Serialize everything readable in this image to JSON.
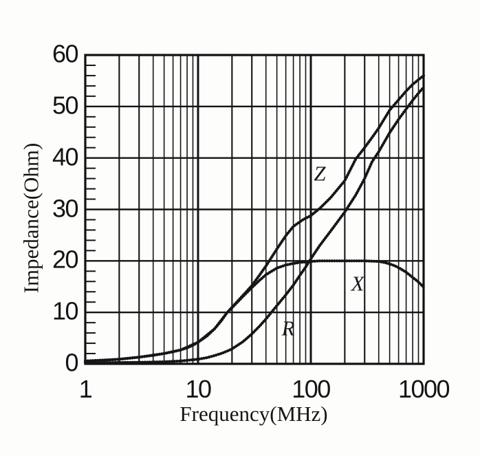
{
  "chart_data": {
    "type": "line",
    "title": "",
    "xlabel": "Frequency(MHz)",
    "ylabel": "Impedance(Ohm)",
    "x_scale": "log",
    "xlim": [
      1,
      1000
    ],
    "ylim": [
      0,
      60
    ],
    "x_tick_values": [
      1,
      10,
      100,
      1000
    ],
    "x_tick_labels": [
      "1",
      "10",
      "100",
      "1000"
    ],
    "y_tick_values": [
      0,
      10,
      20,
      30,
      40,
      50,
      60
    ],
    "y_tick_labels": [
      "0",
      "10",
      "20",
      "30",
      "40",
      "50",
      "60"
    ],
    "y_minor_tick_step": 2,
    "grid": {
      "vertical": "log decades with minor lines at 2-9 per decade",
      "horizontal": "major lines every 10 Ohm",
      "style": "black on white, scanned datasheet look"
    },
    "line_color": "#161616",
    "line_style": "dotted-bead",
    "legend_position": "inline labels on curves",
    "series": [
      {
        "name": "Z",
        "label_at": {
          "freq_mhz": 120,
          "ohm": 37
        },
        "points": [
          [
            1,
            0.55
          ],
          [
            1.5,
            0.7
          ],
          [
            2,
            0.9
          ],
          [
            3,
            1.3
          ],
          [
            4,
            1.65
          ],
          [
            5,
            2.0
          ],
          [
            6,
            2.35
          ],
          [
            7,
            2.7
          ],
          [
            8,
            3.1
          ],
          [
            9,
            3.6
          ],
          [
            10,
            4.2
          ],
          [
            12,
            5.4
          ],
          [
            14,
            6.8
          ],
          [
            16,
            8.3
          ],
          [
            18,
            9.9
          ],
          [
            20,
            11.0
          ],
          [
            25,
            13.3
          ],
          [
            30,
            15.2
          ],
          [
            35,
            17.2
          ],
          [
            40,
            19.0
          ],
          [
            50,
            22.3
          ],
          [
            60,
            24.9
          ],
          [
            70,
            26.7
          ],
          [
            85,
            28.0
          ],
          [
            100,
            28.8
          ],
          [
            120,
            30.2
          ],
          [
            150,
            32.3
          ],
          [
            200,
            35.6
          ],
          [
            250,
            39.8
          ],
          [
            300,
            42.0
          ],
          [
            350,
            44.0
          ],
          [
            400,
            45.8
          ],
          [
            500,
            49.3
          ],
          [
            600,
            51.3
          ],
          [
            700,
            53.0
          ],
          [
            800,
            54.3
          ],
          [
            900,
            55.2
          ],
          [
            1000,
            56.0
          ]
        ]
      },
      {
        "name": "R",
        "label_at": {
          "freq_mhz": 63,
          "ohm": 7.0
        },
        "points": [
          [
            1,
            0.2
          ],
          [
            2,
            0.25
          ],
          [
            3,
            0.3
          ],
          [
            4,
            0.35
          ],
          [
            5,
            0.4
          ],
          [
            7,
            0.55
          ],
          [
            10,
            0.9
          ],
          [
            12,
            1.2
          ],
          [
            14,
            1.6
          ],
          [
            16,
            2.0
          ],
          [
            18,
            2.45
          ],
          [
            20,
            2.9
          ],
          [
            25,
            4.3
          ],
          [
            30,
            5.8
          ],
          [
            35,
            7.3
          ],
          [
            40,
            8.7
          ],
          [
            50,
            11.3
          ],
          [
            60,
            13.4
          ],
          [
            70,
            15.3
          ],
          [
            80,
            17.2
          ],
          [
            90,
            18.8
          ],
          [
            100,
            20.4
          ],
          [
            120,
            23.0
          ],
          [
            150,
            25.8
          ],
          [
            200,
            29.5
          ],
          [
            250,
            32.8
          ],
          [
            300,
            36.0
          ],
          [
            350,
            39.3
          ],
          [
            400,
            41.2
          ],
          [
            500,
            44.9
          ],
          [
            600,
            47.5
          ],
          [
            700,
            49.5
          ],
          [
            800,
            51.2
          ],
          [
            900,
            52.6
          ],
          [
            1000,
            53.7
          ]
        ]
      },
      {
        "name": "X",
        "label_at": {
          "freq_mhz": 260,
          "ohm": 15.6
        },
        "points": [
          [
            1,
            0.55
          ],
          [
            2,
            0.9
          ],
          [
            3,
            1.3
          ],
          [
            5,
            2.0
          ],
          [
            7,
            2.7
          ],
          [
            10,
            4.2
          ],
          [
            14,
            6.8
          ],
          [
            18,
            9.9
          ],
          [
            20,
            10.9
          ],
          [
            25,
            13.1
          ],
          [
            30,
            14.8
          ],
          [
            35,
            16.2
          ],
          [
            40,
            17.3
          ],
          [
            45,
            18.0
          ],
          [
            50,
            18.6
          ],
          [
            60,
            19.2
          ],
          [
            70,
            19.5
          ],
          [
            80,
            19.7
          ],
          [
            100,
            19.9
          ],
          [
            120,
            20.0
          ],
          [
            200,
            20.0
          ],
          [
            300,
            20.0
          ],
          [
            400,
            19.9
          ],
          [
            450,
            19.7
          ],
          [
            500,
            19.4
          ],
          [
            550,
            19.1
          ],
          [
            600,
            18.7
          ],
          [
            700,
            17.8
          ],
          [
            800,
            16.8
          ],
          [
            900,
            15.9
          ],
          [
            1000,
            14.9
          ]
        ]
      }
    ]
  }
}
